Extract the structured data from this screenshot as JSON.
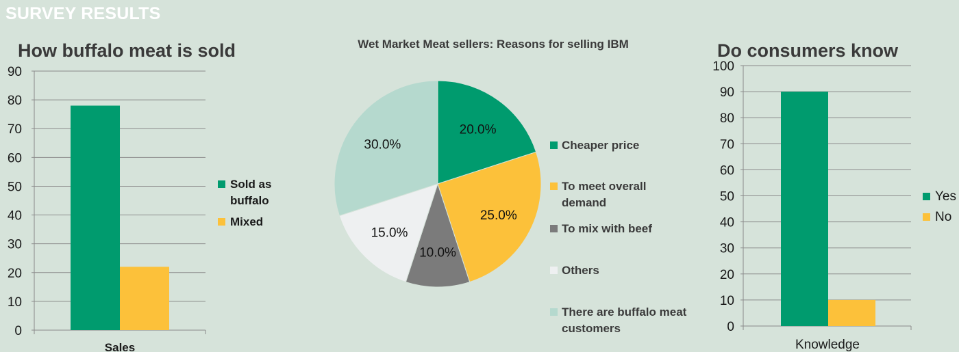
{
  "page": {
    "banner": "SURVEY RESULTS",
    "colors": {
      "background": "#d6e3da",
      "green": "#009b6e",
      "yellow": "#fcc13a",
      "gray": "#7b7b7b",
      "white": "#eef0f1",
      "mint": "#b5d9ce"
    }
  },
  "chart_data": [
    {
      "type": "bar",
      "title": "How buffalo meat is sold",
      "categories": [
        "Sales"
      ],
      "series": [
        {
          "name": "Sold as buffalo",
          "values": [
            78
          ],
          "color": "#009b6e"
        },
        {
          "name": "Mixed",
          "values": [
            22
          ],
          "color": "#fcc13a"
        }
      ],
      "yticks": [
        0,
        10,
        20,
        30,
        40,
        50,
        60,
        70,
        80,
        90
      ],
      "ylim": [
        0,
        90
      ],
      "grid": true,
      "legend": "right"
    },
    {
      "type": "pie",
      "title": "Wet Market Meat sellers: Reasons for selling IBM",
      "slices": [
        {
          "label": "Cheaper price",
          "value": 20.0,
          "display": "20.0%",
          "color": "#009b6e"
        },
        {
          "label": "To meet overall demand",
          "value": 25.0,
          "display": "25.0%",
          "color": "#fcc13a"
        },
        {
          "label": "To mix with beef",
          "value": 10.0,
          "display": "10.0%",
          "color": "#7b7b7b"
        },
        {
          "label": "Others",
          "value": 15.0,
          "display": "15.0%",
          "color": "#eef0f1"
        },
        {
          "label": "There are buffalo meat customers",
          "value": 30.0,
          "display": "30.0%",
          "color": "#b5d9ce"
        }
      ],
      "legend": "right"
    },
    {
      "type": "bar",
      "title": "Do consumers know",
      "categories": [
        "Knowledge"
      ],
      "series": [
        {
          "name": "Yes",
          "values": [
            90
          ],
          "color": "#009b6e"
        },
        {
          "name": "No",
          "values": [
            10
          ],
          "color": "#fcc13a"
        }
      ],
      "yticks": [
        0,
        10,
        20,
        30,
        40,
        50,
        60,
        70,
        80,
        90,
        100
      ],
      "ylim": [
        0,
        100
      ],
      "grid": true,
      "legend": "right"
    }
  ]
}
